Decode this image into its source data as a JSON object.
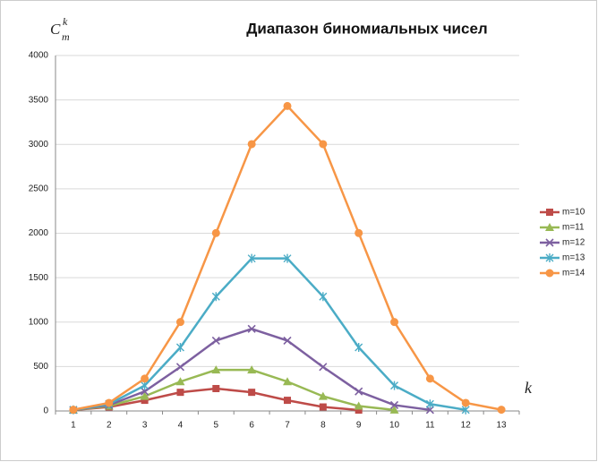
{
  "chart_data": {
    "type": "line",
    "title": "Диапазон биномиальных чисел",
    "y_label": {
      "base": "C",
      "sub": "m",
      "sup": "k"
    },
    "x_label": "k",
    "categories": [
      "1",
      "2",
      "3",
      "4",
      "5",
      "6",
      "7",
      "8",
      "9",
      "10",
      "11",
      "12",
      "13"
    ],
    "ylim": [
      0,
      4000
    ],
    "yticks": [
      0,
      500,
      1000,
      1500,
      2000,
      2500,
      3000,
      3500,
      4000
    ],
    "grid": true,
    "legend": "right",
    "series": [
      {
        "name": "m=10",
        "color": "#be4b48",
        "marker": "square",
        "values": [
          10,
          45,
          120,
          210,
          252,
          210,
          120,
          45,
          10,
          null,
          null,
          null,
          null
        ]
      },
      {
        "name": "m=11",
        "color": "#98b954",
        "marker": "triangle",
        "values": [
          11,
          55,
          165,
          330,
          462,
          462,
          330,
          165,
          55,
          11,
          null,
          null,
          null
        ]
      },
      {
        "name": "m=12",
        "color": "#7d60a0",
        "marker": "x",
        "values": [
          12,
          66,
          220,
          495,
          792,
          924,
          792,
          495,
          220,
          66,
          12,
          null,
          null
        ]
      },
      {
        "name": "m=13",
        "color": "#4bacc6",
        "marker": "star",
        "values": [
          13,
          78,
          286,
          715,
          1287,
          1716,
          1716,
          1287,
          715,
          286,
          78,
          13,
          null
        ]
      },
      {
        "name": "m=14",
        "color": "#f79646",
        "marker": "circle",
        "values": [
          14,
          91,
          364,
          1001,
          2002,
          3003,
          3432,
          3003,
          2002,
          1001,
          364,
          91,
          14
        ]
      }
    ]
  }
}
